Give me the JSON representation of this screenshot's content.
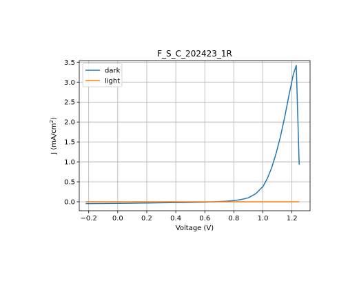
{
  "chart_data": {
    "type": "line",
    "title": "F_S_C_202423_1R",
    "xlabel": "Voltage (V)",
    "ylabel_main": "J (mA/cm",
    "ylabel_sup": "2",
    "ylabel_close": ")",
    "xlim": [
      -0.265,
      1.325
    ],
    "ylim": [
      -0.225,
      3.54
    ],
    "xticks": [
      -0.2,
      0.0,
      0.2,
      0.4,
      0.6,
      0.8,
      1.0,
      1.2
    ],
    "xtick_labels": [
      "−0.2",
      "0.0",
      "0.2",
      "0.4",
      "0.6",
      "0.8",
      "1.0",
      "1.2"
    ],
    "yticks": [
      0.0,
      0.5,
      1.0,
      1.5,
      2.0,
      2.5,
      3.0,
      3.5
    ],
    "ytick_labels": [
      "0.0",
      "0.5",
      "1.0",
      "1.5",
      "2.0",
      "2.5",
      "3.0",
      "3.5"
    ],
    "grid": true,
    "legend_position": "top-left",
    "series": [
      {
        "name": "dark",
        "color": "#1f77b4",
        "points": [
          [
            -0.22,
            -0.045
          ],
          [
            0.0,
            -0.04
          ],
          [
            0.2,
            -0.03
          ],
          [
            0.4,
            -0.02
          ],
          [
            0.5,
            -0.015
          ],
          [
            0.6,
            -0.008
          ],
          [
            0.65,
            -0.002
          ],
          [
            0.7,
            0.005
          ],
          [
            0.75,
            0.015
          ],
          [
            0.8,
            0.03
          ],
          [
            0.85,
            0.055
          ],
          [
            0.9,
            0.1
          ],
          [
            0.95,
            0.2
          ],
          [
            1.0,
            0.38
          ],
          [
            1.03,
            0.58
          ],
          [
            1.06,
            0.85
          ],
          [
            1.09,
            1.2
          ],
          [
            1.12,
            1.62
          ],
          [
            1.15,
            2.12
          ],
          [
            1.18,
            2.68
          ],
          [
            1.21,
            3.2
          ],
          [
            1.23,
            3.42
          ],
          [
            1.25,
            0.93
          ]
        ]
      },
      {
        "name": "light",
        "color": "#ff7f0e",
        "points": [
          [
            -0.22,
            0.0
          ],
          [
            0.2,
            0.0
          ],
          [
            0.6,
            0.0
          ],
          [
            1.0,
            0.0
          ],
          [
            1.25,
            0.0
          ]
        ]
      }
    ]
  }
}
